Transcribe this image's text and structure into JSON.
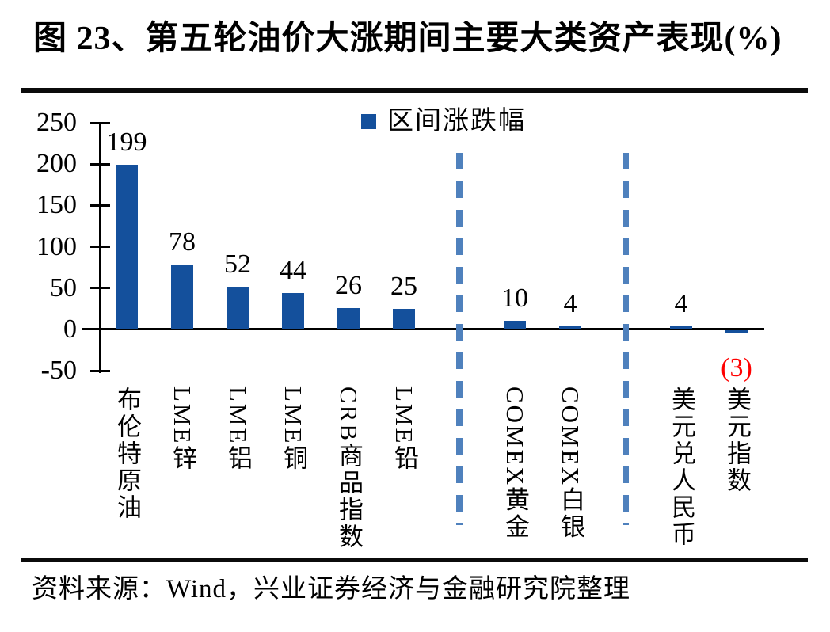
{
  "header": {
    "title": "图 23、第五轮油价大涨期间主要大类资产表现(%)"
  },
  "chart_data": {
    "type": "bar",
    "title": "图 23、第五轮油价大涨期间主要大类资产表现(%)",
    "legend": [
      {
        "label": "区间涨跌幅",
        "color": "#14509C"
      }
    ],
    "legend_position": "top-center",
    "categories": [
      "布伦特原油",
      "LME锌",
      "LME铝",
      "LME铜",
      "CRB商品指数",
      "LME铅",
      "COMEX黄金",
      "COMEX白银",
      "美元兑人民币",
      "美元指数"
    ],
    "values": [
      199,
      78,
      52,
      44,
      26,
      25,
      10,
      4,
      4,
      -3
    ],
    "data_labels": [
      "199",
      "78",
      "52",
      "44",
      "26",
      "25",
      "10",
      "4",
      "4",
      "(3)"
    ],
    "bar_color": "#14509C",
    "negative_label_color": "#FF0000",
    "xlabel": "",
    "ylabel": "",
    "ylim": [
      -50,
      250
    ],
    "yticks": [
      250,
      200,
      150,
      100,
      50,
      0,
      -50
    ],
    "grid": false,
    "group_separators_after_index": [
      5,
      7
    ],
    "separator_color": "#4F81BD"
  },
  "footer": {
    "source": "资料来源：Wind，兴业证券经济与金融研究院整理"
  }
}
